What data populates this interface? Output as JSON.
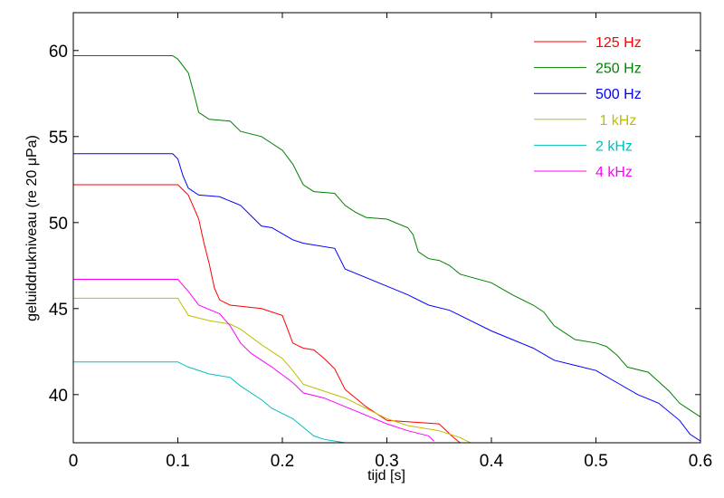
{
  "chart_data": {
    "type": "line",
    "xlabel": "tijd  [s]",
    "ylabel": "geluiddrukniveau (re 20 μPa)",
    "xlim": [
      0,
      0.6
    ],
    "ylim": [
      37.2,
      62.2
    ],
    "xticks": [
      "0",
      "0.1",
      "0.2",
      "0.3",
      "0.4",
      "0.5",
      "0.6"
    ],
    "yticks": [
      "40",
      "45",
      "50",
      "55",
      "60"
    ],
    "xtick_values": [
      0,
      0.1,
      0.2,
      0.3,
      0.4,
      0.5,
      0.6
    ],
    "ytick_values": [
      40,
      45,
      50,
      55,
      60
    ],
    "grid": false,
    "legend_position": "top-right",
    "series": [
      {
        "name": "125 Hz",
        "color": "#ff0000",
        "x": [
          0,
          0.1,
          0.11,
          0.12,
          0.125,
          0.13,
          0.135,
          0.14,
          0.15,
          0.18,
          0.2,
          0.205,
          0.21,
          0.22,
          0.23,
          0.24,
          0.25,
          0.26,
          0.27,
          0.28,
          0.3,
          0.35,
          0.362,
          0.37,
          0.385
        ],
        "y": [
          52.2,
          52.2,
          51.6,
          50.2,
          48.8,
          47.6,
          46.2,
          45.5,
          45.2,
          45.0,
          44.6,
          43.8,
          43.0,
          42.7,
          42.6,
          42.1,
          41.5,
          40.3,
          39.8,
          39.3,
          38.5,
          38.3,
          37.6,
          37.2,
          37.2
        ]
      },
      {
        "name": "250 Hz",
        "color": "#008000",
        "x": [
          0,
          0.095,
          0.1,
          0.11,
          0.115,
          0.12,
          0.13,
          0.15,
          0.16,
          0.18,
          0.2,
          0.21,
          0.22,
          0.23,
          0.25,
          0.26,
          0.27,
          0.28,
          0.3,
          0.32,
          0.325,
          0.33,
          0.34,
          0.35,
          0.36,
          0.37,
          0.4,
          0.42,
          0.44,
          0.45,
          0.46,
          0.47,
          0.48,
          0.5,
          0.51,
          0.52,
          0.53,
          0.55,
          0.57,
          0.58,
          0.6
        ],
        "y": [
          59.7,
          59.7,
          59.5,
          58.7,
          57.6,
          56.4,
          56.0,
          55.9,
          55.3,
          55.0,
          54.2,
          53.4,
          52.2,
          51.8,
          51.7,
          51.0,
          50.6,
          50.3,
          50.2,
          49.7,
          49.3,
          48.3,
          47.9,
          47.8,
          47.5,
          47.0,
          46.5,
          45.8,
          45.2,
          44.8,
          44.0,
          43.6,
          43.2,
          43.0,
          42.8,
          42.3,
          41.6,
          41.3,
          40.2,
          39.5,
          38.7
        ]
      },
      {
        "name": "500 Hz",
        "color": "#0000ff",
        "x": [
          0,
          0.095,
          0.1,
          0.105,
          0.11,
          0.12,
          0.14,
          0.16,
          0.18,
          0.19,
          0.21,
          0.22,
          0.25,
          0.26,
          0.28,
          0.3,
          0.32,
          0.34,
          0.36,
          0.38,
          0.4,
          0.42,
          0.44,
          0.46,
          0.48,
          0.5,
          0.52,
          0.54,
          0.56,
          0.58,
          0.59,
          0.6
        ],
        "y": [
          54.0,
          54.0,
          53.7,
          52.7,
          52.0,
          51.6,
          51.5,
          51.0,
          49.8,
          49.7,
          49.0,
          48.8,
          48.5,
          47.3,
          46.8,
          46.3,
          45.8,
          45.2,
          44.9,
          44.3,
          43.7,
          43.2,
          42.7,
          42.0,
          41.7,
          41.4,
          40.7,
          40.0,
          39.5,
          38.5,
          37.7,
          37.3
        ]
      },
      {
        "name": " 1 kHz",
        "color": "#bfbf00",
        "x": [
          0,
          0.1,
          0.11,
          0.13,
          0.15,
          0.16,
          0.18,
          0.2,
          0.21,
          0.22,
          0.24,
          0.26,
          0.28,
          0.3,
          0.32,
          0.35,
          0.37,
          0.38
        ],
        "y": [
          45.6,
          45.6,
          44.6,
          44.3,
          44.1,
          43.8,
          42.9,
          42.1,
          41.4,
          40.6,
          40.2,
          39.8,
          39.2,
          38.6,
          38.2,
          37.9,
          37.5,
          37.2
        ]
      },
      {
        "name": "2 kHz",
        "color": "#00bfbf",
        "x": [
          0,
          0.1,
          0.11,
          0.13,
          0.15,
          0.16,
          0.18,
          0.19,
          0.2,
          0.21,
          0.22,
          0.23,
          0.24,
          0.25,
          0.26,
          0.27
        ],
        "y": [
          41.9,
          41.9,
          41.6,
          41.2,
          41.0,
          40.5,
          39.7,
          39.2,
          38.9,
          38.6,
          38.1,
          37.6,
          37.4,
          37.3,
          37.2,
          37.2
        ]
      },
      {
        "name": "4 kHz",
        "color": "#ff00ff",
        "x": [
          0,
          0.1,
          0.11,
          0.12,
          0.14,
          0.15,
          0.16,
          0.17,
          0.19,
          0.21,
          0.22,
          0.24,
          0.26,
          0.28,
          0.3,
          0.32,
          0.34,
          0.345
        ],
        "y": [
          46.7,
          46.7,
          46.0,
          45.2,
          44.7,
          44.0,
          43.0,
          42.4,
          41.6,
          40.7,
          40.1,
          39.8,
          39.3,
          38.8,
          38.3,
          37.9,
          37.6,
          37.3
        ]
      }
    ]
  }
}
